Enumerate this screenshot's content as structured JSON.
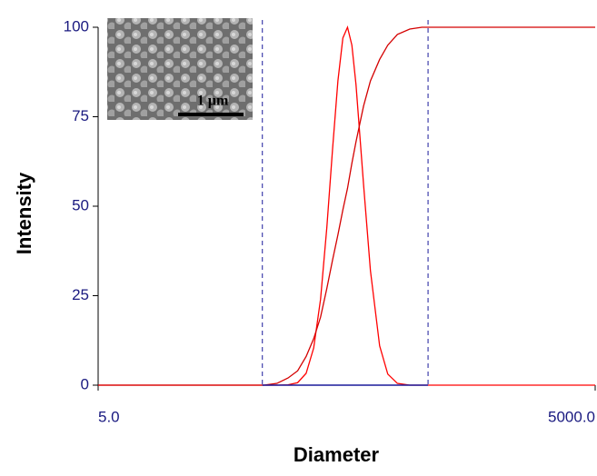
{
  "chart_data": {
    "type": "line",
    "x_label": "Diameter",
    "y_label": "Intensity",
    "x": [
      5,
      40,
      50,
      60,
      70,
      80,
      90,
      100,
      110,
      120,
      130,
      140,
      150,
      160,
      170,
      180,
      200,
      220,
      250,
      280,
      320,
      380,
      450,
      500,
      1000,
      5000
    ],
    "series": [
      {
        "color": "#ff0000",
        "values": [
          0,
          0,
          0,
          0,
          0.1,
          0.7,
          3.3,
          10.4,
          24,
          44,
          66,
          85,
          97,
          100,
          95,
          84,
          56,
          32,
          11,
          3.1,
          0.5,
          0,
          0,
          0,
          0,
          0
        ]
      },
      {
        "color": "#d40000",
        "values": [
          0,
          0,
          0,
          0.5,
          2,
          4,
          8,
          13,
          19,
          27,
          35,
          42,
          49,
          55,
          62,
          68,
          78,
          85,
          91,
          95,
          98,
          99.5,
          100,
          100,
          100,
          100
        ]
      }
    ],
    "x_log": true,
    "xlim": [
      5,
      5000
    ],
    "xticks": [
      {
        "value": 5,
        "label": "5.0"
      },
      {
        "value": 5000,
        "label": "5000.0"
      }
    ],
    "ylim": [
      0,
      100
    ],
    "yticks": [
      0,
      25,
      50,
      75,
      100
    ],
    "cursor_lines": [
      49,
      490
    ],
    "cursor_color": "#1a1a9a",
    "inset_label": "1 µm"
  }
}
